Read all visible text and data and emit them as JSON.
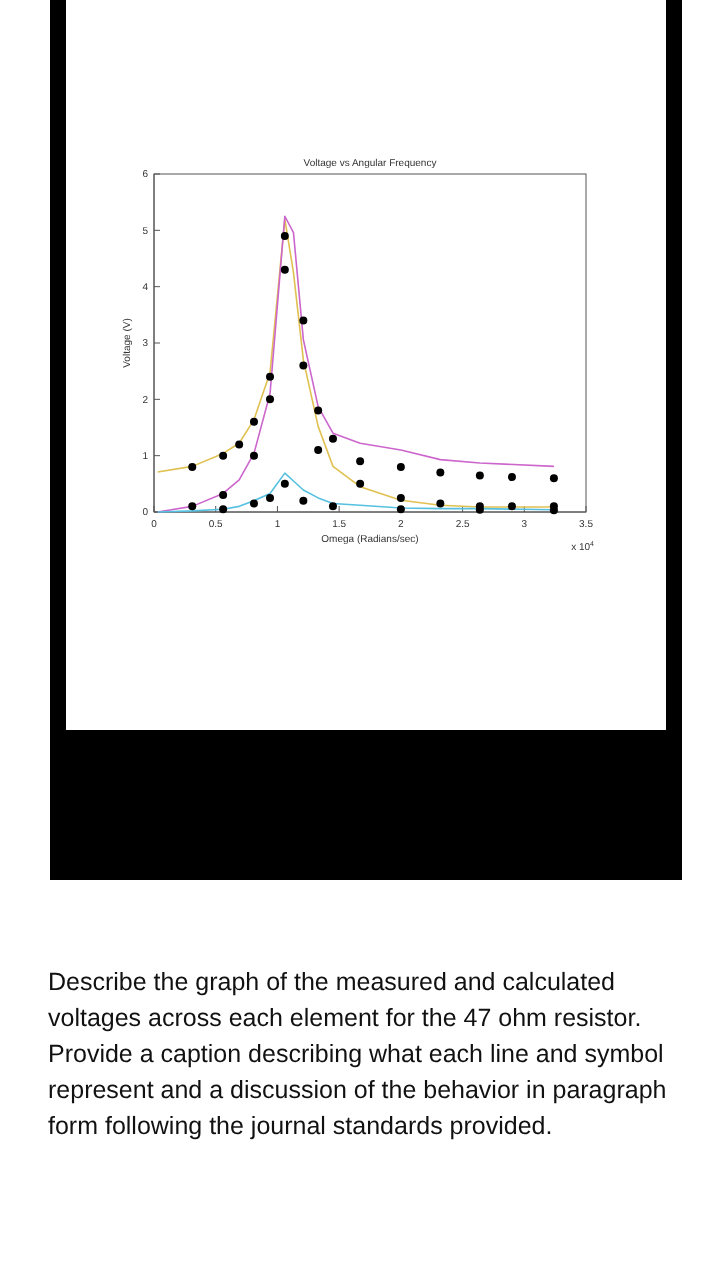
{
  "chart_data": {
    "type": "line",
    "title": "Voltage vs Angular Frequency",
    "xlabel": "Omega (Radians/sec)",
    "ylabel": "Voltage (V)",
    "xlim": [
      0,
      3.5
    ],
    "ylim": [
      0,
      6
    ],
    "xticks": [
      0,
      0.5,
      1,
      1.5,
      2,
      2.5,
      3,
      3.5
    ],
    "yticks": [
      0,
      1,
      2,
      3,
      4,
      5,
      6
    ],
    "grid": false,
    "annotations": [
      "x 10$^{4}$",
      "Describe the graph of the measured and calculated voltages across each element for the 47 ohm resistor. Provide  a caption describing what each line and symbol represent and a discussion of the behavior in paragraph form following the journal standards provided."
    ],
    "series": [
      {
        "color": "#e0c050",
        "x": [
          0.03,
          0.31,
          0.56,
          0.69,
          0.81,
          0.94,
          1.06,
          1.13,
          1.21,
          1.33,
          1.45,
          1.67,
          2.0,
          2.32,
          2.64,
          3.24
        ],
        "values": [
          0.71,
          0.81,
          1.04,
          1.22,
          1.64,
          2.47,
          5.2,
          4.25,
          2.7,
          1.52,
          0.81,
          0.45,
          0.21,
          0.12,
          0.09,
          0.09
        ]
      },
      {
        "color": "#cc66cc",
        "x": [
          0.03,
          0.31,
          0.56,
          0.69,
          0.81,
          0.94,
          1.06,
          1.13,
          1.21,
          1.33,
          1.45,
          1.67,
          2.0,
          2.32,
          2.64,
          3.24
        ],
        "values": [
          0,
          0.1,
          0.33,
          0.57,
          1.04,
          2.1,
          5.25,
          4.96,
          3.06,
          1.87,
          1.4,
          1.22,
          1.1,
          0.93,
          0.87,
          0.81
        ]
      },
      {
        "color": "#55c0e0",
        "x": [
          0.03,
          0.31,
          0.56,
          0.69,
          0.81,
          0.94,
          1.06,
          1.13,
          1.21,
          1.33,
          1.45,
          1.67,
          2.0,
          2.32,
          2.64,
          3.24
        ],
        "values": [
          0,
          0.02,
          0.05,
          0.1,
          0.2,
          0.33,
          0.69,
          0.55,
          0.39,
          0.25,
          0.15,
          0.12,
          0.07,
          0.06,
          0.06,
          0.04
        ]
      },
      {
        "type": "scatter",
        "color": "#000000",
        "marker": "circle",
        "x": [
          0.31,
          0.56,
          0.69,
          0.81,
          0.94,
          1.06,
          1.21,
          1.33,
          1.67,
          2.0,
          2.32,
          2.64,
          2.9,
          3.24
        ],
        "values": [
          0.8,
          1.0,
          1.2,
          1.6,
          2.4,
          4.9,
          2.6,
          1.1,
          0.5,
          0.25,
          0.15,
          0.1,
          0.1,
          0.1
        ]
      },
      {
        "type": "scatter",
        "color": "#000000",
        "marker": "circle",
        "x": [
          0.31,
          0.56,
          0.81,
          0.94,
          1.06,
          1.21,
          1.33,
          1.45,
          1.67,
          2.0,
          2.32,
          2.64,
          2.9,
          3.24
        ],
        "values": [
          0.1,
          0.3,
          1.0,
          2.0,
          4.3,
          3.4,
          1.8,
          1.3,
          0.9,
          0.8,
          0.7,
          0.65,
          0.62,
          0.6
        ]
      },
      {
        "type": "scatter",
        "color": "#000000",
        "marker": "circle",
        "x": [
          0.56,
          0.81,
          0.94,
          1.06,
          1.21,
          1.45,
          2.0,
          2.64,
          3.24
        ],
        "values": [
          0.05,
          0.15,
          0.25,
          0.5,
          0.2,
          0.1,
          0.05,
          0.04,
          0.03
        ]
      }
    ]
  }
}
